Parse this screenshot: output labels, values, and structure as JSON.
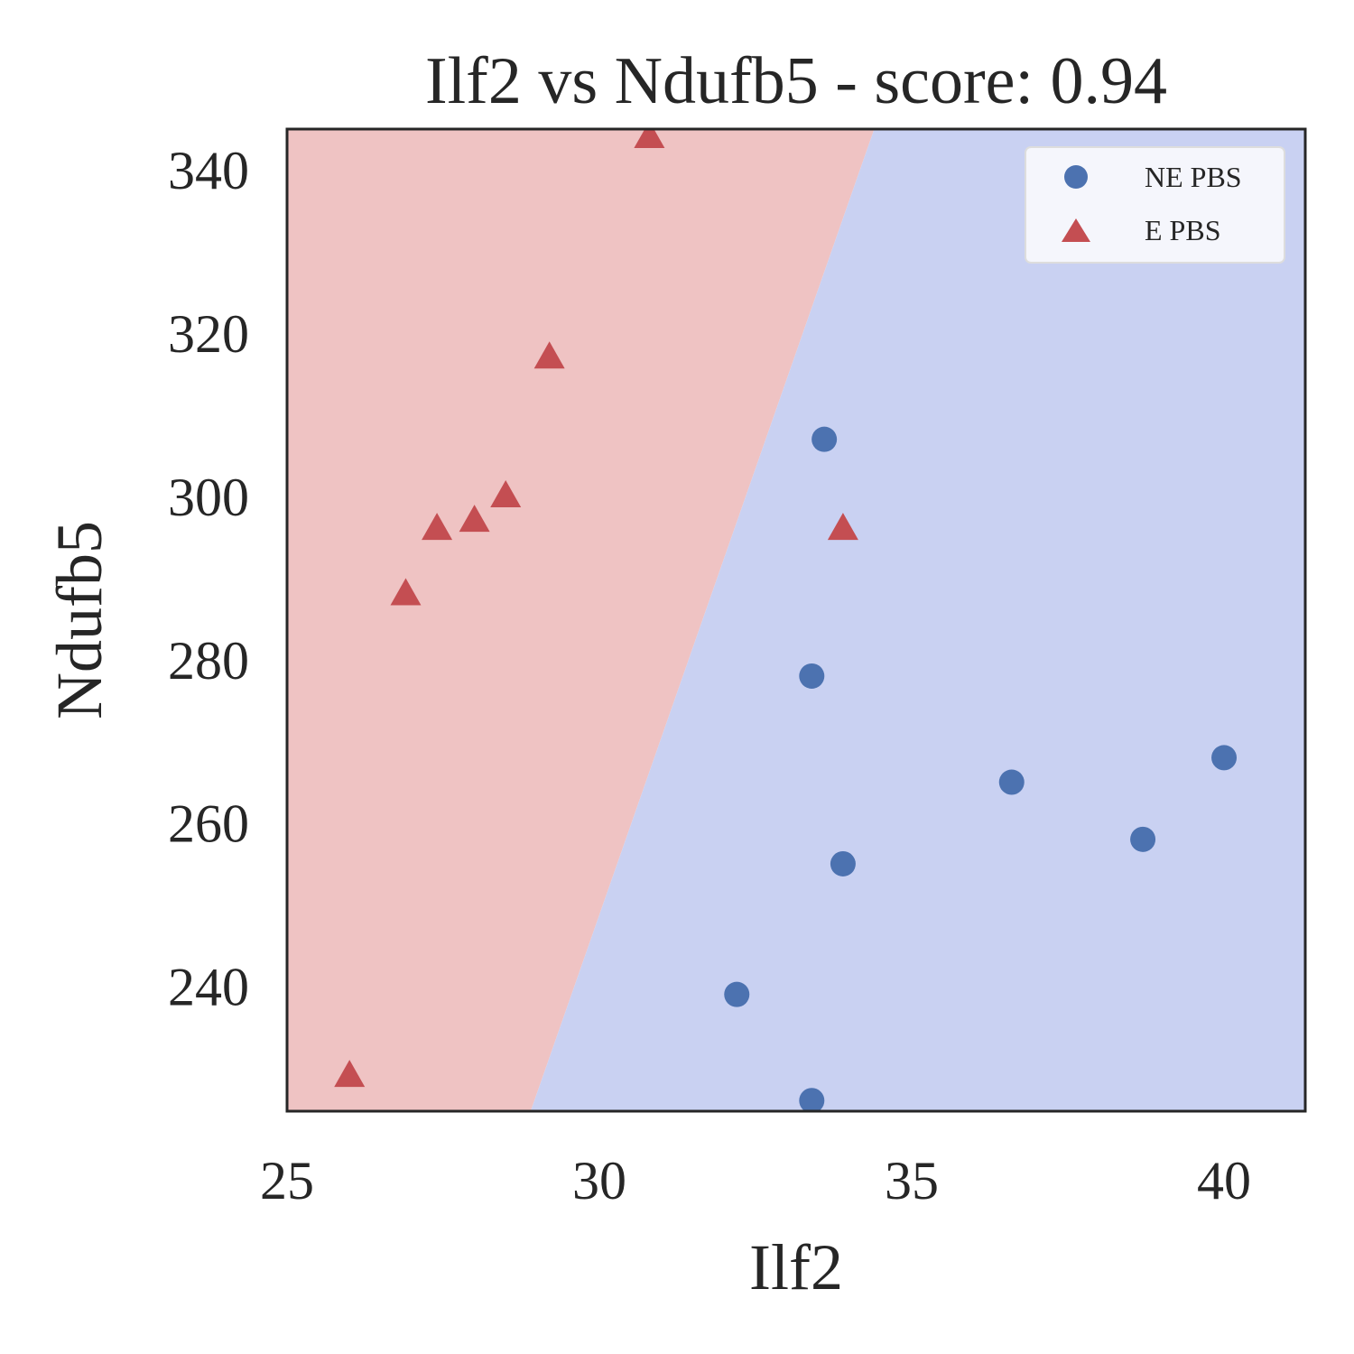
{
  "chart_data": {
    "type": "scatter",
    "title": "Ilf2 vs Ndufb5 - score: 0.94",
    "xlabel": "Ilf2",
    "ylabel": "Ndufb5",
    "xlim": [
      25,
      41.3
    ],
    "ylim": [
      224.7,
      345
    ],
    "xticks": [
      25,
      30,
      35,
      40
    ],
    "yticks": [
      240,
      260,
      280,
      300,
      320,
      340
    ],
    "grid": false,
    "legend_position": "top-right",
    "decision_boundary": {
      "points": [
        [
          28.9,
          224.7
        ],
        [
          34.4,
          345
        ]
      ],
      "left_region_class": "E PBS",
      "right_region_class": "NE PBS"
    },
    "colors": {
      "ne_pbs": "#4c72b0",
      "e_pbs": "#c44e52",
      "ne_region": "#c9d1f2",
      "e_region": "#efc3c3",
      "axes_edge": "#262626"
    },
    "series": [
      {
        "name": "NE PBS",
        "marker": "circle",
        "x": [
          33.6,
          33.4,
          36.6,
          40.0,
          38.7,
          33.9,
          32.2,
          33.4
        ],
        "y": [
          307,
          278,
          265,
          268,
          258,
          255,
          239,
          226
        ]
      },
      {
        "name": "E PBS",
        "marker": "triangle",
        "x": [
          30.8,
          29.2,
          28.5,
          28.0,
          27.4,
          26.9,
          33.9,
          26.0
        ],
        "y": [
          344,
          317,
          300,
          297,
          296,
          288,
          296,
          229
        ]
      }
    ]
  }
}
